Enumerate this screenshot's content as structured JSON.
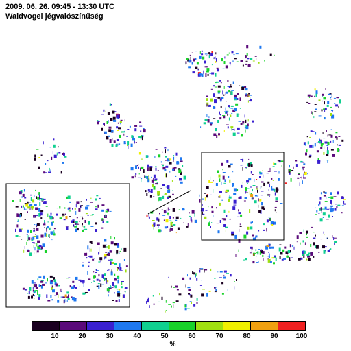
{
  "title": {
    "line1": "2009. 06. 26. 09:45 - 13:30 UTC",
    "line2": "Waldvogel jégvalószínűség"
  },
  "colorbar": {
    "colors": [
      "#1a0020",
      "#5a0a7a",
      "#3a20d0",
      "#1e78f0",
      "#10d090",
      "#19d22a",
      "#a0e010",
      "#f0f000",
      "#f0a010",
      "#f02020"
    ],
    "tick_labels": [
      "10",
      "20",
      "30",
      "40",
      "50",
      "60",
      "70",
      "80",
      "90",
      "100"
    ],
    "unit": "%"
  },
  "map": {
    "main_inset_label": "",
    "zoom_inset_label": ""
  }
}
